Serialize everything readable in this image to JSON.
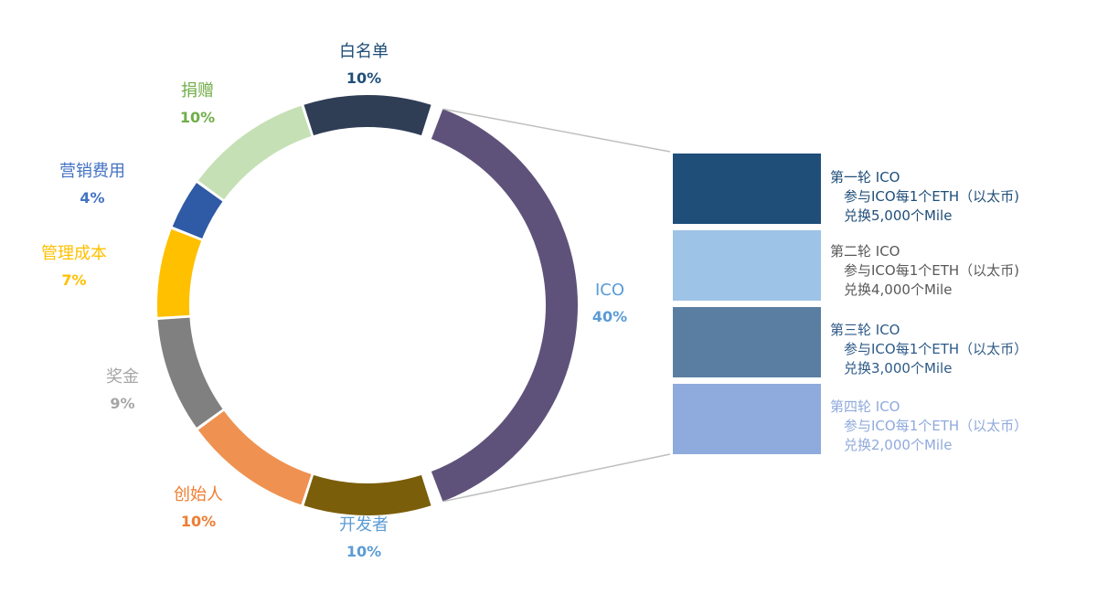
{
  "chart_data": {
    "type": "pie",
    "subtype": "donut-with-breakdown",
    "slices": [
      {
        "label": "白名单",
        "value": 10,
        "display": "10%",
        "color": "#2f3d55"
      },
      {
        "label": "ICO",
        "value": 40,
        "display": "40%",
        "color": "#5f527a"
      },
      {
        "label": "开发者",
        "value": 10,
        "display": "10%",
        "color": "#7b5e0a"
      },
      {
        "label": "创始人",
        "value": 10,
        "display": "10%",
        "color": "#ef9150"
      },
      {
        "label": "奖金",
        "value": 9,
        "display": "9%",
        "color": "#808080"
      },
      {
        "label": "管理成本",
        "value": 7,
        "display": "7%",
        "color": "#ffc000"
      },
      {
        "label": "营销费用",
        "value": 4,
        "display": "4%",
        "color": "#2e5aa6"
      },
      {
        "label": "捐赠",
        "value": 10,
        "display": "10%",
        "color": "#c5e0b4"
      }
    ],
    "label_colors": {
      "白名单": "#1f4e79",
      "ICO": "#5b9bd5",
      "开发者": "#5b9bd5",
      "创始人": "#ed7d31",
      "奖金": "#a6a6a6",
      "管理成本": "#ffc000",
      "营销费用": "#4472c4",
      "捐赠": "#70ad47"
    },
    "breakdown_of": "ICO",
    "breakdown": [
      {
        "title": "第一轮 ICO",
        "line1": "参与ICO每1个ETH（以太币)",
        "line2": "兑换5,000个Mile",
        "box_color": "#1f4e79",
        "text_color": "#1f4e79"
      },
      {
        "title": "第二轮 ICO",
        "line1": "参与ICO每1个ETH（以太币)",
        "line2": "兑换4,000个Mile",
        "box_color": "#9dc3e6",
        "text_color": "#595959"
      },
      {
        "title": "第三轮 ICO",
        "line1": "参与ICO每1个ETH（以太币）",
        "line2": "兑换3,000个Mile",
        "box_color": "#5a7ea2",
        "text_color": "#2e5a87"
      },
      {
        "title": "第四轮 ICO",
        "line1": "参与ICO每1个ETH（以太币）",
        "line2": "兑换2,000个Mile",
        "box_color": "#8faadc",
        "text_color": "#8faadc"
      }
    ]
  }
}
